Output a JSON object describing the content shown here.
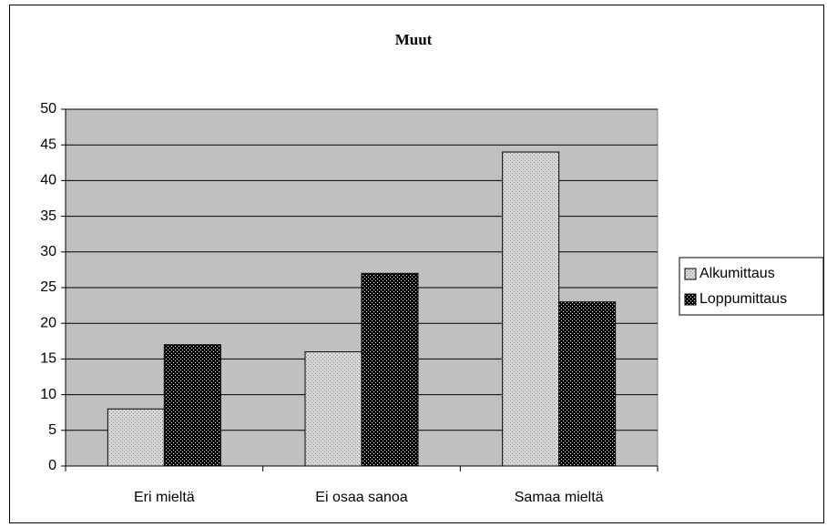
{
  "chart_data": {
    "type": "bar",
    "title": "Muut",
    "categories": [
      "Eri mieltä",
      "Ei osaa sanoa",
      "Samaa mieltä"
    ],
    "series": [
      {
        "name": "Alkumittaus",
        "color": "#d8d8d8",
        "values": [
          8,
          16,
          44
        ]
      },
      {
        "name": "Loppumittaus",
        "color": "#000000",
        "values": [
          17,
          27,
          23
        ]
      }
    ],
    "ylim": [
      0,
      50
    ],
    "yticks": [
      0,
      5,
      10,
      15,
      20,
      25,
      30,
      35,
      40,
      45,
      50
    ],
    "grid": true,
    "legend": "right"
  }
}
